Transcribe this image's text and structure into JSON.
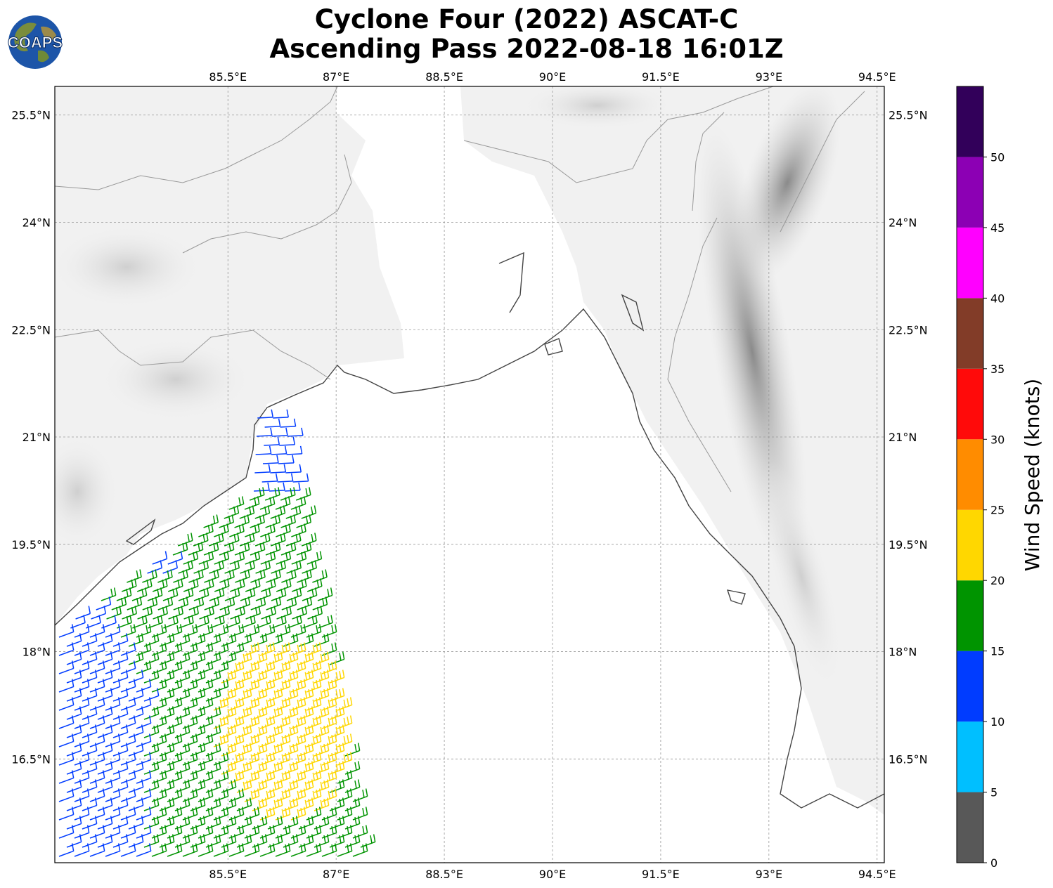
{
  "title": {
    "line1": "Cyclone Four (2022) ASCAT-C",
    "line2": "Ascending Pass 2022-08-18 16:01Z"
  },
  "logo": {
    "text": "COAPS"
  },
  "map": {
    "lon_range": [
      83.1,
      94.6
    ],
    "lat_range": [
      15.05,
      25.9
    ],
    "lon_ticks": [
      "85.5°E",
      "87°E",
      "88.5°E",
      "90°E",
      "91.5°E",
      "93°E",
      "94.5°E"
    ],
    "lon_values": [
      85.5,
      87,
      88.5,
      90,
      91.5,
      93,
      94.5
    ],
    "lat_ticks": [
      "25.5°N",
      "24°N",
      "22.5°N",
      "21°N",
      "19.5°N",
      "18°N",
      "16.5°N"
    ],
    "lat_values": [
      25.5,
      24,
      22.5,
      21,
      19.5,
      18,
      16.5
    ],
    "gridlines": true,
    "background": "grayscale terrain"
  },
  "colorbar": {
    "label": "Wind Speed (knots)",
    "ticks": [
      "0",
      "5",
      "10",
      "15",
      "20",
      "25",
      "30",
      "35",
      "40",
      "45",
      "50"
    ],
    "bins": [
      {
        "min": 0,
        "max": 5,
        "color": "#585858"
      },
      {
        "min": 5,
        "max": 10,
        "color": "#00bfff"
      },
      {
        "min": 10,
        "max": 15,
        "color": "#003cff"
      },
      {
        "min": 15,
        "max": 20,
        "color": "#009400"
      },
      {
        "min": 20,
        "max": 25,
        "color": "#ffd700"
      },
      {
        "min": 25,
        "max": 30,
        "color": "#ff8c00"
      },
      {
        "min": 30,
        "max": 35,
        "color": "#ff0a0a"
      },
      {
        "min": 35,
        "max": 40,
        "color": "#823c28"
      },
      {
        "min": 40,
        "max": 45,
        "color": "#ff00ff"
      },
      {
        "min": 45,
        "max": 50,
        "color": "#8c00b4"
      },
      {
        "min": 50,
        "max": 55,
        "color": "#32005a"
      }
    ]
  },
  "wind_swath": {
    "description_colors": {
      "blue": "#003cff",
      "green": "#009400",
      "yellow": "#ffd700"
    }
  }
}
